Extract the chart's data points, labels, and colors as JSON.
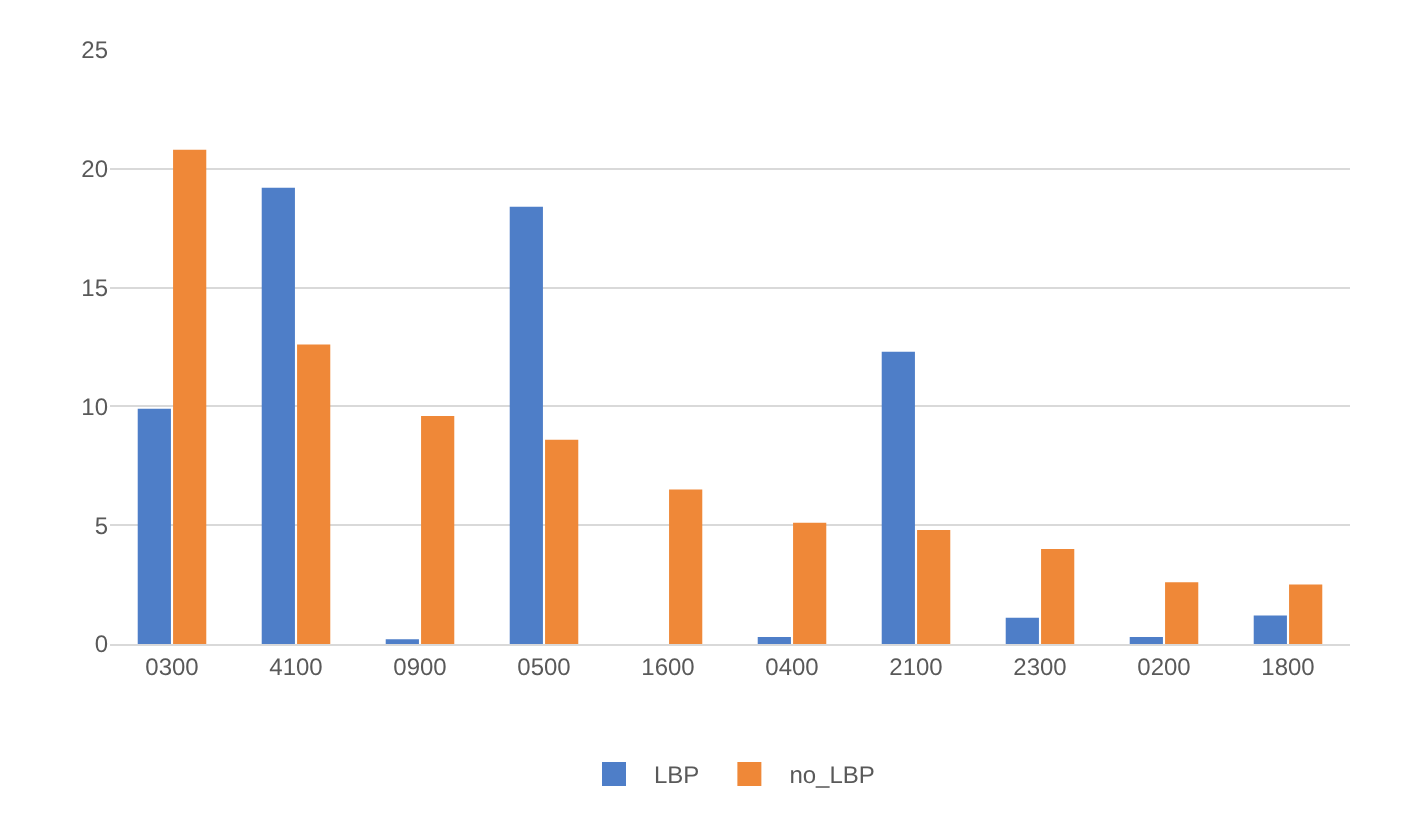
{
  "chart_data": {
    "type": "bar",
    "categories": [
      "0300",
      "4100",
      "0900",
      "0500",
      "1600",
      "0400",
      "2100",
      "2300",
      "0200",
      "1800"
    ],
    "series": [
      {
        "name": "LBP",
        "color": "#4e7ec8",
        "values": [
          9.9,
          19.2,
          0.2,
          18.4,
          0,
          0.3,
          12.3,
          1.1,
          0.3,
          1.2
        ]
      },
      {
        "name": "no_LBP",
        "color": "#ef8838",
        "values": [
          20.8,
          12.6,
          9.6,
          8.6,
          6.5,
          5.1,
          4.8,
          4.0,
          2.6,
          2.5
        ]
      }
    ],
    "ylim": [
      0,
      25
    ],
    "yticks": [
      0,
      5,
      10,
      15,
      20,
      25
    ],
    "grid": "y",
    "legend": "bottom"
  }
}
